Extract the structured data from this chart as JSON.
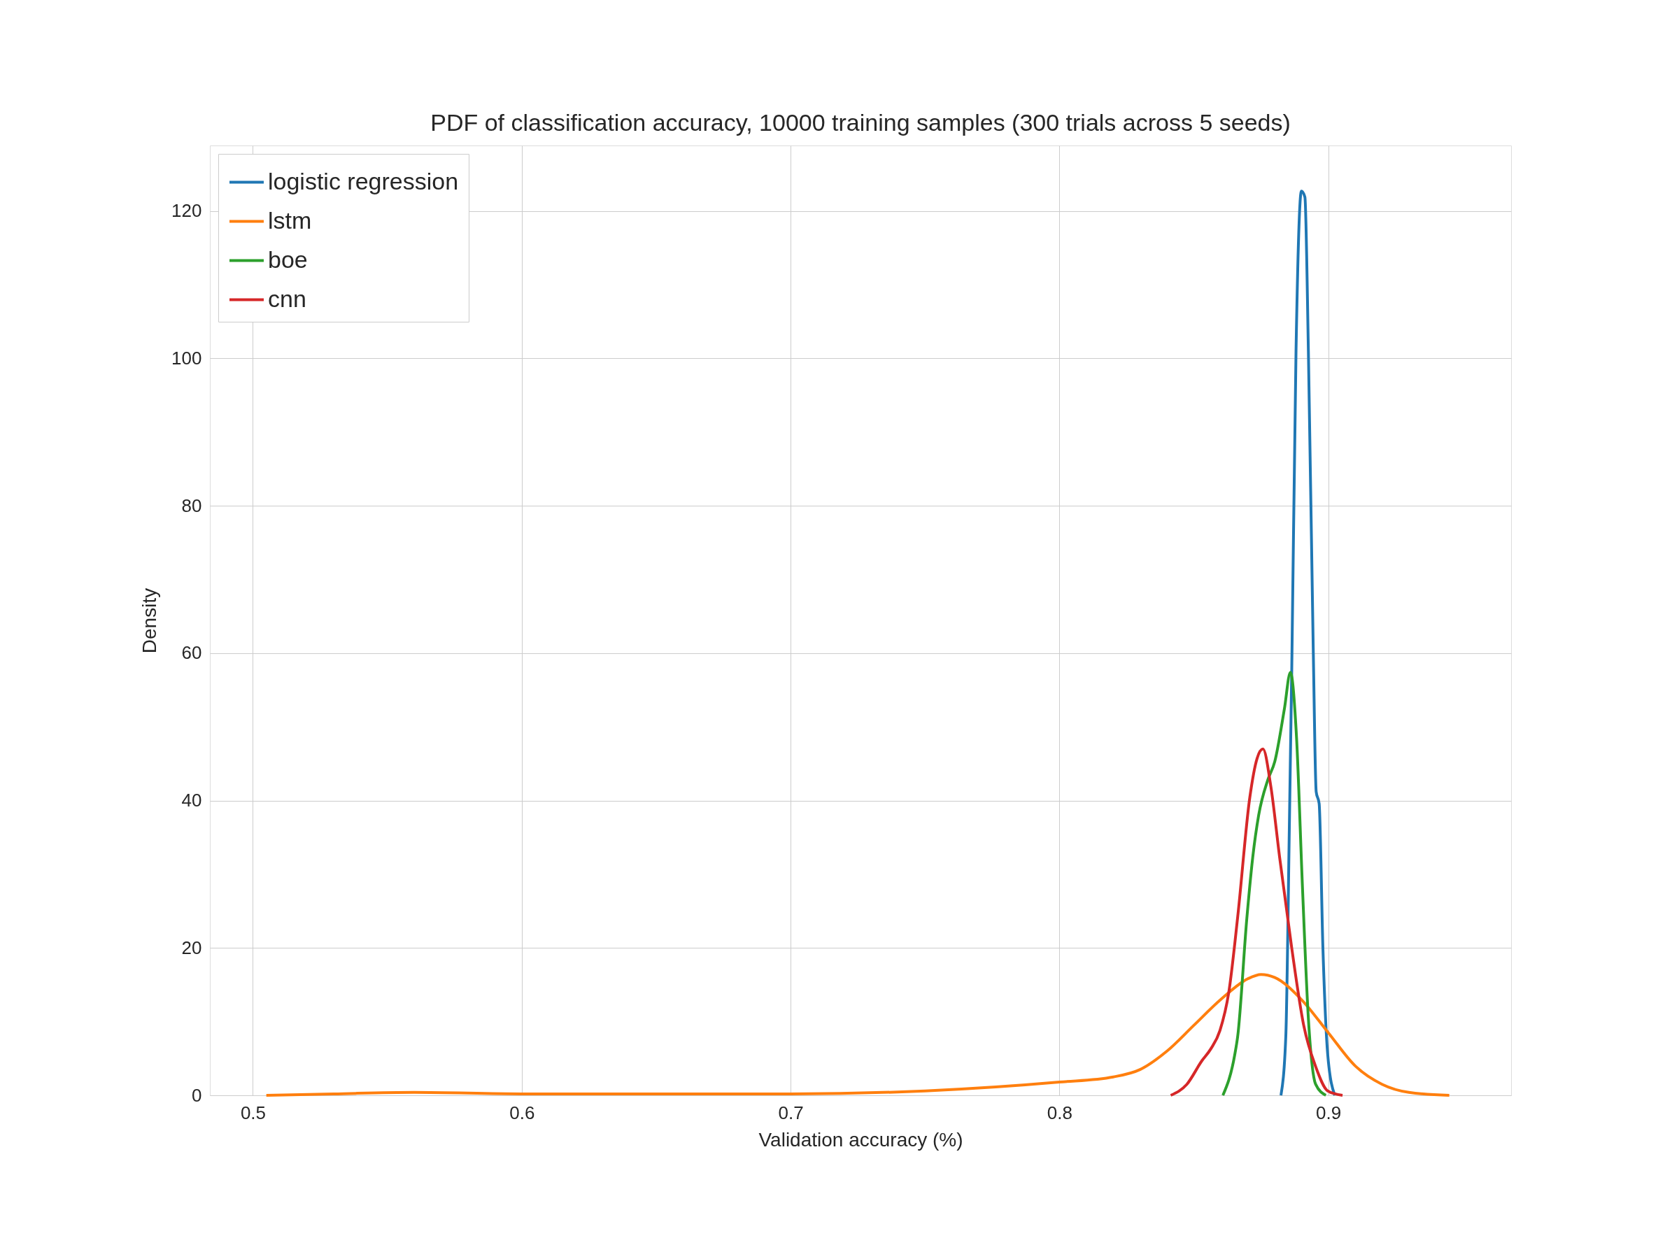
{
  "chart_data": {
    "type": "line",
    "title": "PDF of classification accuracy, 10000 training samples (300 trials across 5 seeds)",
    "xlabel": "Validation accuracy (%)",
    "ylabel": "Density",
    "xlim": [
      0.484,
      0.968
    ],
    "ylim": [
      0,
      128.9
    ],
    "xticks": [
      0.5,
      0.6,
      0.7,
      0.8,
      0.9
    ],
    "yticks": [
      0,
      20,
      40,
      60,
      80,
      100,
      120
    ],
    "grid": true,
    "legend": "top left",
    "marker": "none",
    "line_style": "solid",
    "series": [
      {
        "name": "logistic regression",
        "color": "#1f77b4",
        "x": [
          0.8824,
          0.8842,
          0.8855,
          0.8864,
          0.888,
          0.89,
          0.8913,
          0.8926,
          0.8944,
          0.8955,
          0.8966,
          0.898,
          0.8998,
          0.9024
        ],
        "values": [
          0,
          8,
          36,
          57.4,
          101,
          122.7,
          121.9,
          101,
          60.7,
          41.2,
          39.6,
          20,
          5.5,
          0
        ]
      },
      {
        "name": "lstm",
        "color": "#ff7f0e",
        "x": [
          0.505,
          0.53,
          0.56,
          0.6,
          0.65,
          0.7,
          0.75,
          0.8,
          0.82,
          0.83,
          0.84,
          0.85,
          0.86,
          0.87,
          0.875,
          0.88,
          0.89,
          0.9,
          0.91,
          0.92,
          0.93,
          0.945
        ],
        "values": [
          0,
          0.2,
          0.4,
          0.2,
          0.2,
          0.2,
          0.6,
          1.8,
          2.5,
          3.5,
          6,
          9.5,
          13,
          15.8,
          16.4,
          16,
          13,
          8.5,
          4,
          1.5,
          0.4,
          0
        ]
      },
      {
        "name": "boe",
        "color": "#2ca02c",
        "x": [
          0.8608,
          0.8652,
          0.8663,
          0.8697,
          0.8719,
          0.8741,
          0.8775,
          0.8801,
          0.8837,
          0.8859,
          0.8882,
          0.8904,
          0.8926,
          0.8953,
          0.8991
        ],
        "values": [
          0,
          5.5,
          8,
          24,
          32.3,
          38,
          42.8,
          45.3,
          52.5,
          57.4,
          48.5,
          28.2,
          10.4,
          1.5,
          0
        ]
      },
      {
        "name": "cnn",
        "color": "#d62728",
        "x": [
          0.8414,
          0.8474,
          0.853,
          0.8563,
          0.8597,
          0.863,
          0.8663,
          0.8708,
          0.8735,
          0.8757,
          0.8786,
          0.8819,
          0.8864,
          0.8908,
          0.8953,
          0.8998,
          0.9053
        ],
        "values": [
          0,
          1.5,
          4.7,
          6.3,
          8.8,
          14,
          24.2,
          40.4,
          45.7,
          47.0,
          42,
          32.3,
          20,
          9.6,
          3.9,
          0.6,
          0
        ]
      }
    ]
  }
}
